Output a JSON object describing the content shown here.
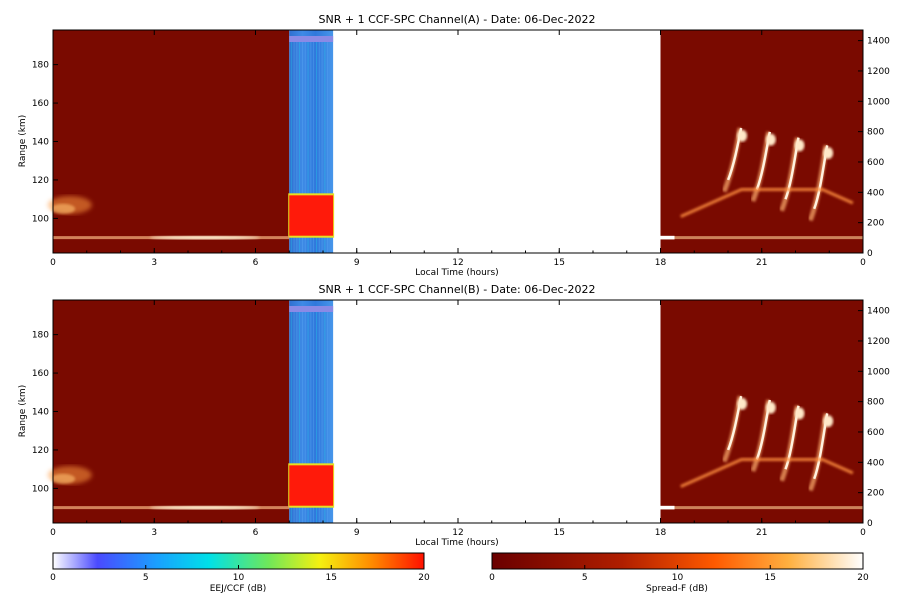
{
  "chart_data": [
    {
      "type": "heatmap",
      "title": "SNR + 1 CCF-SPC Channel(A) - Date: 06-Dec-2022",
      "xlabel": "Local Time (hours)",
      "ylabel": "Range (km)",
      "xlim": [
        0,
        24
      ],
      "ylim": [
        82,
        198
      ],
      "xticks": [
        "0",
        "3",
        "6",
        "9",
        "12",
        "15",
        "18",
        "21",
        "0"
      ],
      "yticks": [
        100,
        120,
        140,
        160,
        180
      ],
      "y2ticks": [
        0,
        200,
        400,
        600,
        800,
        1000,
        1200,
        1400
      ],
      "data_windows_hours": [
        [
          0,
          7
        ],
        [
          7,
          8.3
        ],
        [
          18,
          24
        ]
      ],
      "eej_block": {
        "time": [
          7,
          8.3
        ],
        "range_strong": [
          91,
          112
        ],
        "level_db": 20
      },
      "spread_f_plumes_km": [
        [
          120,
          147
        ],
        [
          115,
          145
        ],
        [
          110,
          142
        ],
        [
          105,
          138
        ]
      ],
      "surface_band_km": 90
    },
    {
      "type": "heatmap",
      "title": "SNR + 1 CCF-SPC Channel(B) - Date: 06-Dec-2022",
      "xlabel": "Local Time (hours)",
      "ylabel": "Range (km)",
      "xlim": [
        0,
        24
      ],
      "ylim": [
        82,
        198
      ],
      "xticks": [
        "0",
        "3",
        "6",
        "9",
        "12",
        "15",
        "18",
        "21",
        "0"
      ],
      "yticks": [
        100,
        120,
        140,
        160,
        180
      ],
      "y2ticks": [
        0,
        200,
        400,
        600,
        800,
        1000,
        1200,
        1400
      ],
      "data_windows_hours": [
        [
          0,
          7
        ],
        [
          7,
          8.3
        ],
        [
          18,
          24
        ]
      ],
      "eej_block": {
        "time": [
          7,
          8.3
        ],
        "range_strong": [
          91,
          112
        ],
        "level_db": 20
      },
      "spread_f_plumes_km": [
        [
          120,
          148
        ],
        [
          115,
          146
        ],
        [
          110,
          143
        ],
        [
          105,
          139
        ]
      ],
      "surface_band_km": 90
    }
  ],
  "colorbars": [
    {
      "label": "EEJ/CCF (dB)",
      "ticks": [
        "0",
        "5",
        "10",
        "15",
        "20"
      ],
      "range": [
        0,
        20
      ],
      "colormap": "jet-like"
    },
    {
      "label": "Spread-F (dB)",
      "ticks": [
        "0",
        "5",
        "10",
        "15",
        "20"
      ],
      "range": [
        0,
        20
      ],
      "colormap": "hot"
    }
  ],
  "colors": {
    "background": "#7a0a00",
    "eej_base": "#3a7ad8",
    "eej_strong": "#ff1a0a"
  }
}
